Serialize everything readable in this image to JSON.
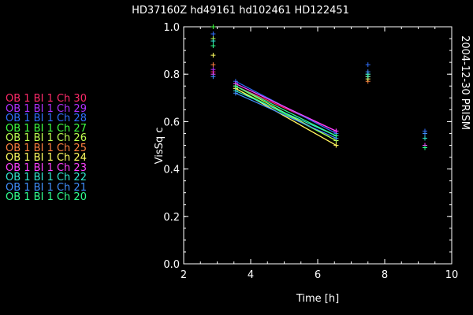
{
  "chart_data": {
    "type": "scatter",
    "title": "HD37160Z hd49161   hd102461  HD122451",
    "side_label": "2004-12-30 PRISM",
    "xlabel": "Time [h]",
    "ylabel": "VisSq c",
    "xlim": [
      2,
      10
    ],
    "ylim": [
      0.0,
      1.0
    ],
    "xticks": [
      "2",
      "4",
      "6",
      "8",
      "10"
    ],
    "yticks": [
      "0.0",
      "0.2",
      "0.4",
      "0.6",
      "0.8",
      "1.0"
    ],
    "grid": false,
    "legend_position": "left",
    "series": [
      {
        "name": "OB 1 BI 1 Ch 30",
        "color": "#ff2a6a",
        "points": [
          [
            2.88,
            0.81
          ],
          [
            3.55,
            0.75
          ],
          [
            6.55,
            0.56
          ],
          [
            7.5,
            0.79
          ],
          [
            9.2,
            0.5
          ]
        ]
      },
      {
        "name": "OB 1 BI 1 Ch 29",
        "color": "#b030ff",
        "points": [
          [
            2.88,
            0.82
          ],
          [
            3.55,
            0.76
          ],
          [
            6.55,
            0.56
          ],
          [
            7.5,
            0.8
          ],
          [
            9.2,
            0.49
          ]
        ]
      },
      {
        "name": "OB 1 BI 1 Ch 28",
        "color": "#3070ff",
        "points": [
          [
            2.88,
            0.97
          ],
          [
            3.55,
            0.77
          ],
          [
            6.55,
            0.55
          ],
          [
            7.5,
            0.84
          ],
          [
            9.2,
            0.56
          ]
        ]
      },
      {
        "name": "OB 1 BI 1 Ch 27",
        "color": "#40ff40",
        "points": [
          [
            2.88,
            1.0
          ],
          [
            3.55,
            0.74
          ],
          [
            6.55,
            0.52
          ],
          [
            7.5,
            0.8
          ],
          [
            9.2,
            0.49
          ]
        ]
      },
      {
        "name": "OB 1 BI 1 Ch 26",
        "color": "#c0ff50",
        "points": [
          [
            2.88,
            0.95
          ],
          [
            3.55,
            0.75
          ],
          [
            6.55,
            0.52
          ],
          [
            7.5,
            0.79
          ],
          [
            9.2,
            0.49
          ]
        ]
      },
      {
        "name": "OB 1 BI 1 Ch 25",
        "color": "#ff8040",
        "points": [
          [
            2.88,
            0.84
          ],
          [
            3.55,
            0.74
          ],
          [
            6.55,
            0.5
          ],
          [
            7.5,
            0.77
          ],
          [
            9.2,
            0.49
          ]
        ]
      },
      {
        "name": "OB 1 BI 1 Ch 24",
        "color": "#ffff60",
        "points": [
          [
            2.88,
            0.88
          ],
          [
            3.55,
            0.74
          ],
          [
            6.55,
            0.5
          ],
          [
            7.5,
            0.78
          ],
          [
            9.2,
            0.49
          ]
        ]
      },
      {
        "name": "OB 1 BI 1 Ch 23",
        "color": "#ff40ff",
        "points": [
          [
            2.88,
            0.8
          ],
          [
            3.55,
            0.76
          ],
          [
            6.55,
            0.56
          ],
          [
            7.5,
            0.79
          ],
          [
            9.2,
            0.5
          ]
        ]
      },
      {
        "name": "OB 1 BI 1 Ch 22",
        "color": "#30e8d0",
        "points": [
          [
            2.88,
            0.94
          ],
          [
            3.55,
            0.73
          ],
          [
            6.55,
            0.54
          ],
          [
            7.5,
            0.8
          ],
          [
            9.2,
            0.53
          ]
        ]
      },
      {
        "name": "OB 1 BI 1 Ch 21",
        "color": "#4090ff",
        "points": [
          [
            2.88,
            0.79
          ],
          [
            3.55,
            0.72
          ],
          [
            6.55,
            0.53
          ],
          [
            7.5,
            0.81
          ],
          [
            9.2,
            0.55
          ]
        ]
      },
      {
        "name": "OB 1 BI 1 Ch 20",
        "color": "#30ff90",
        "points": [
          [
            2.88,
            0.92
          ],
          [
            3.55,
            0.75
          ],
          [
            6.55,
            0.54
          ],
          [
            7.5,
            0.79
          ],
          [
            9.2,
            0.49
          ]
        ]
      }
    ]
  }
}
